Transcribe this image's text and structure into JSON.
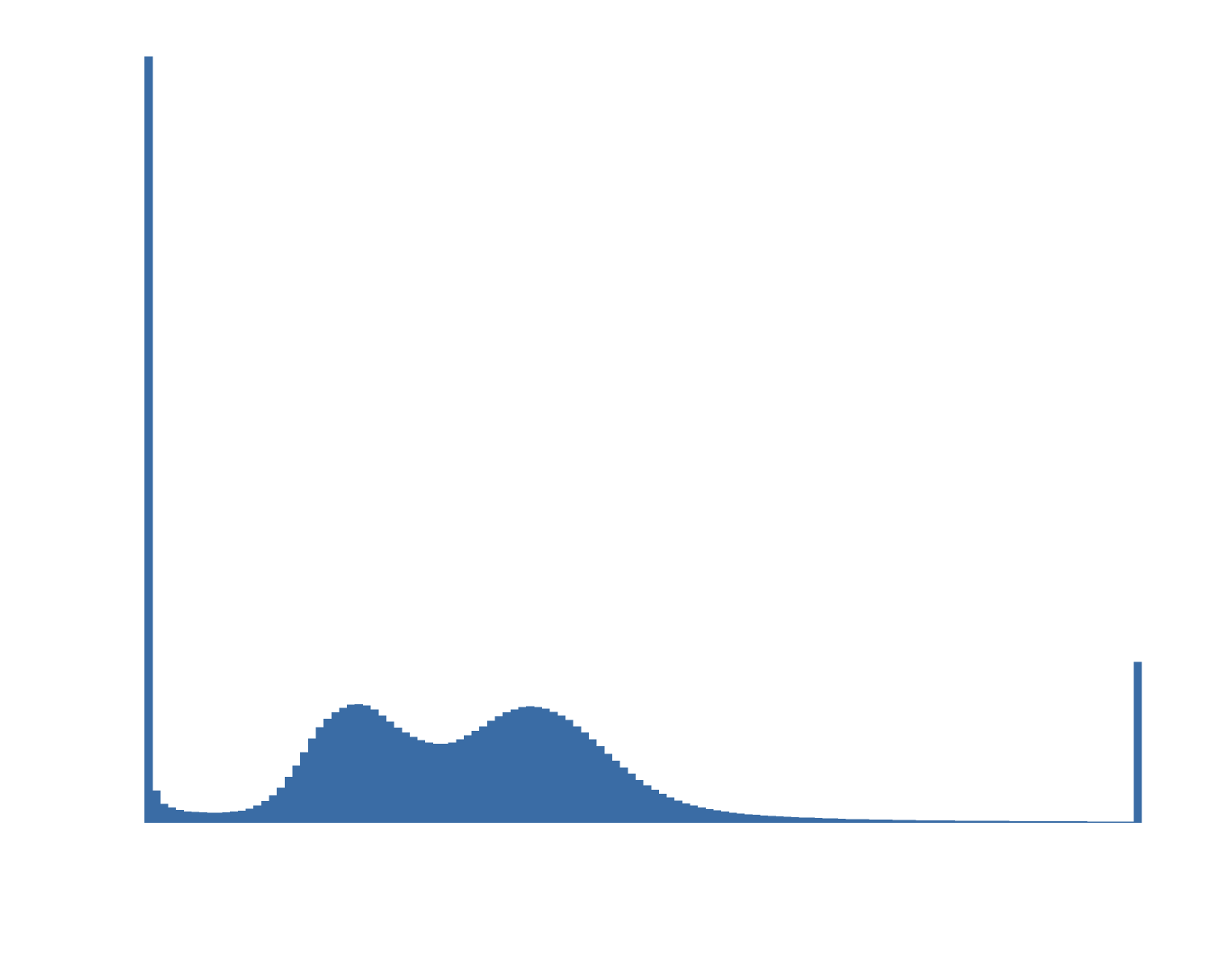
{
  "chart_data": {
    "type": "bar",
    "title": "",
    "xlabel": "",
    "ylabel": "",
    "color": "#3a6ca5",
    "axes_visible": false,
    "grid": false,
    "legend": "none",
    "bin_count": 128,
    "ylim": [
      0,
      100
    ],
    "values": [
      100.0,
      4.2,
      2.5,
      2.0,
      1.7,
      1.5,
      1.4,
      1.35,
      1.3,
      1.3,
      1.35,
      1.45,
      1.6,
      1.85,
      2.25,
      2.85,
      3.6,
      4.6,
      6.0,
      7.5,
      9.2,
      11.0,
      12.5,
      13.6,
      14.4,
      15.0,
      15.4,
      15.5,
      15.3,
      14.8,
      14.0,
      13.2,
      12.4,
      11.8,
      11.2,
      10.8,
      10.5,
      10.3,
      10.3,
      10.5,
      10.9,
      11.4,
      12.0,
      12.6,
      13.3,
      13.9,
      14.4,
      14.8,
      15.1,
      15.2,
      15.1,
      14.9,
      14.5,
      14.0,
      13.4,
      12.6,
      11.8,
      10.9,
      10.0,
      9.0,
      8.1,
      7.2,
      6.4,
      5.6,
      4.9,
      4.3,
      3.8,
      3.3,
      2.9,
      2.55,
      2.25,
      2.0,
      1.8,
      1.62,
      1.47,
      1.34,
      1.23,
      1.13,
      1.04,
      0.97,
      0.9,
      0.84,
      0.79,
      0.74,
      0.7,
      0.66,
      0.62,
      0.59,
      0.56,
      0.53,
      0.5,
      0.48,
      0.46,
      0.44,
      0.42,
      0.4,
      0.38,
      0.37,
      0.35,
      0.34,
      0.33,
      0.32,
      0.31,
      0.3,
      0.29,
      0.28,
      0.27,
      0.26,
      0.25,
      0.25,
      0.24,
      0.23,
      0.23,
      0.22,
      0.22,
      0.21,
      0.21,
      0.2,
      0.2,
      0.19,
      0.19,
      0.18,
      0.18,
      0.17,
      0.17,
      0.16,
      0.16,
      21.0
    ]
  }
}
